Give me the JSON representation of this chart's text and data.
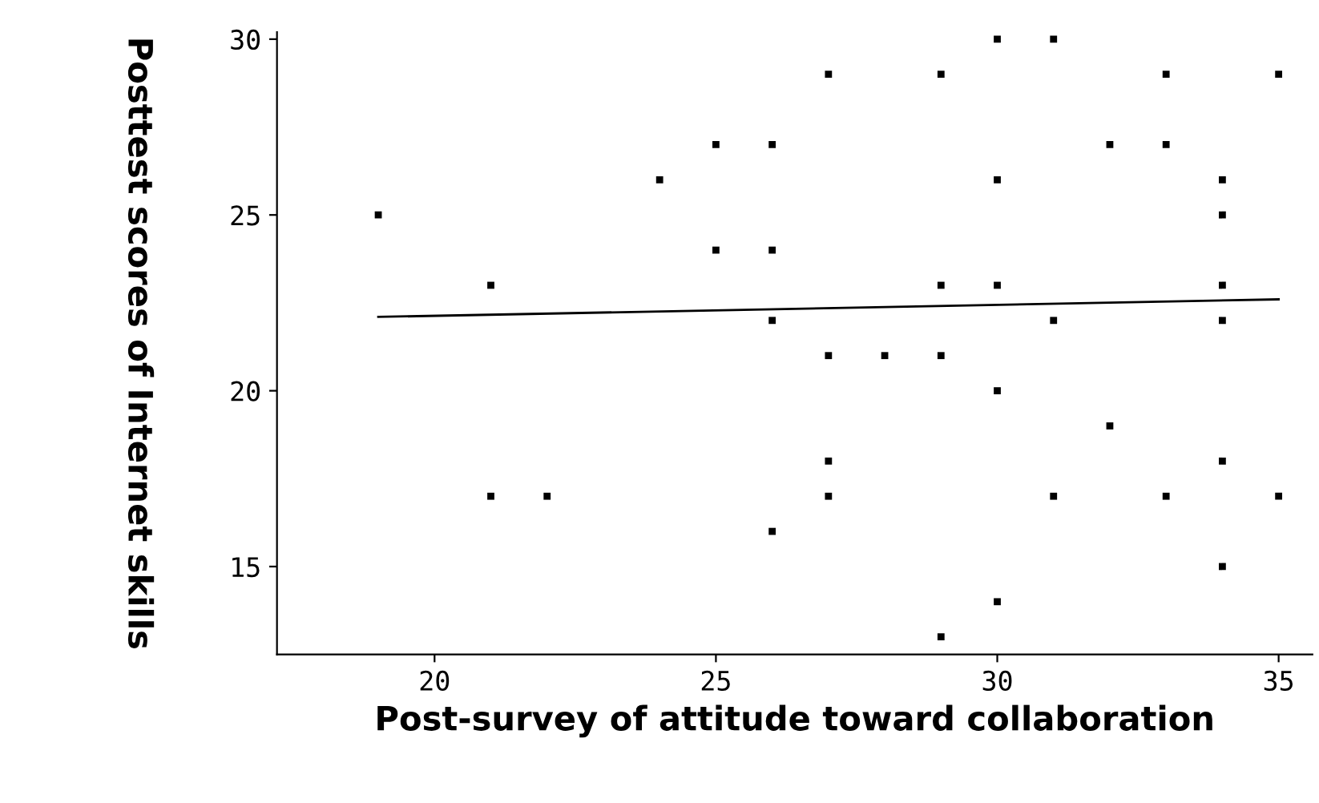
{
  "chart_data": {
    "type": "scatter",
    "xlabel": "Post-survey of attitude toward collaboration",
    "ylabel": "Posttest scores of Internet skills",
    "xlim": [
      17.2,
      35.6
    ],
    "ylim": [
      12.5,
      30.2
    ],
    "xticks": [
      20,
      25,
      30,
      35
    ],
    "yticks": [
      15,
      20,
      25,
      30
    ],
    "grid": false,
    "legend": false,
    "series": [
      {
        "marker": "square",
        "color": "#000000",
        "x": [
          19,
          21,
          21,
          22,
          24,
          25,
          25,
          26,
          26,
          26,
          26,
          27,
          27,
          27,
          27,
          28,
          29,
          29,
          29,
          29,
          30,
          30,
          30,
          30,
          30,
          31,
          31,
          31,
          32,
          32,
          33,
          33,
          33,
          34,
          34,
          34,
          34,
          34,
          34,
          35,
          35
        ],
        "values": [
          25,
          23,
          17,
          17,
          26,
          27,
          24,
          27,
          24,
          22,
          16,
          29,
          21,
          18,
          17,
          21,
          29,
          23,
          21,
          13,
          30,
          26,
          23,
          20,
          14,
          30,
          22,
          17,
          27,
          19,
          29,
          27,
          17,
          26,
          25,
          23,
          22,
          18,
          15,
          29,
          17
        ]
      },
      {
        "type": "line",
        "color": "#000000",
        "x": [
          19,
          35
        ],
        "values": [
          22.1,
          22.6
        ]
      }
    ]
  }
}
